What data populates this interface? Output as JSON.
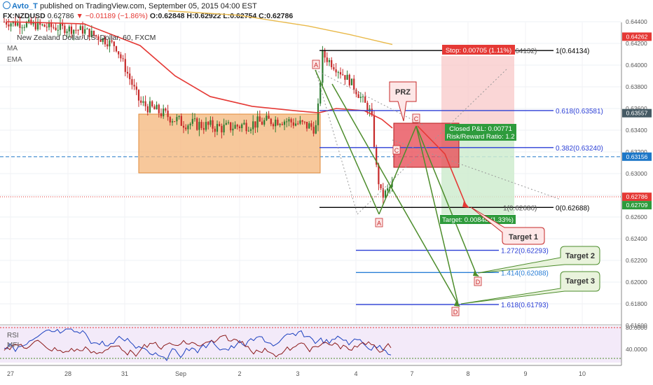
{
  "header": {
    "user": "Avto_T",
    "publish_text": "published on TradingView.com, September 05, 2015 04:00 EST",
    "symbol": "FX:NZDUSD",
    "last": "0.62786",
    "change": "▼ −0.01189 (−1.86%)",
    "open": "O:0.62848",
    "high": "H:0.62922",
    "low": "L:0.62754",
    "close": "C:0.62786"
  },
  "legend": {
    "title": "New Zealand Dollar/U.S. Dollar, 60, FXCM",
    "ma": "MA",
    "ema": "EMA",
    "rsi": "RSI",
    "mfi": "MFI"
  },
  "colors": {
    "up": "#2e7d32",
    "down": "#c62828",
    "accent": "#1e78c8",
    "stop": "#e53935",
    "target": "#2e9b3c",
    "fib": "#2b3fd6",
    "zone": "#f4b57a"
  },
  "chart_data": {
    "type": "candlestick",
    "price_axis": {
      "ticks": [
        "0.64400",
        "0.64200",
        "0.64000",
        "0.63800",
        "0.63600",
        "0.63400",
        "0.63200",
        "0.63000",
        "0.62800",
        "0.62600",
        "0.62400",
        "0.62200",
        "0.62000",
        "0.61800",
        "0.61600"
      ],
      "ylim": [
        0.6152,
        0.6459
      ]
    },
    "price_badges": [
      {
        "text": "0.64262",
        "value": 0.64262,
        "color": "#e53935"
      },
      {
        "text": "0.63557",
        "value": 0.63557,
        "color": "#455a64"
      },
      {
        "text": "0.63156",
        "value": 0.63156,
        "color": "#1e78c8"
      },
      {
        "text": "0.62786",
        "value": 0.62786,
        "color": "#e53935"
      },
      {
        "text": "0.62709",
        "value": 0.62709,
        "color": "#2e9b3c"
      }
    ],
    "time_axis": [
      "27",
      "28",
      "31",
      "Sep",
      "2",
      "3",
      "4",
      "7",
      "8",
      "9",
      "10"
    ],
    "fib_levels": [
      {
        "text": "1(0.64134)",
        "value": 0.64134,
        "color": "#000000"
      },
      {
        "text": "0.618(0.63581)",
        "value": 0.63581,
        "color": "#2b3fd6"
      },
      {
        "text": "0.382(0.63240)",
        "value": 0.6324,
        "color": "#2b3fd6"
      },
      {
        "text": "0(0.62688)",
        "value": 0.62688,
        "color": "#000000"
      },
      {
        "text": "1.272(0.62293)",
        "value": 0.62293,
        "color": "#2b3fd6"
      },
      {
        "text": "1.414(0.62088)",
        "value": 0.62088,
        "color": "#2b7fd6"
      },
      {
        "text": "1.618(0.61793)",
        "value": 0.61793,
        "color": "#2b3fd6"
      }
    ],
    "fib_top_label": "0(0.64132)",
    "fib_bottom_label": "1(0.62686)",
    "pattern_points": [
      "A",
      "A",
      "C",
      "C",
      "D",
      "D"
    ],
    "annotations": {
      "prz": "PRZ",
      "stop": "Stop: 0.00705 (1.11%)",
      "closed_pl": "Closed P&L: 0.00771",
      "risk_reward": "Risk/Reward Ratio: 1.2",
      "target": "Target: 0.00848 (1.33%)",
      "target1": "Target 1",
      "target2": "Target 2",
      "target3": "Target 3"
    },
    "indicator": {
      "names": [
        "RSI",
        "MFI"
      ],
      "ticks": [
        "80.0000",
        "40.0000"
      ]
    }
  }
}
